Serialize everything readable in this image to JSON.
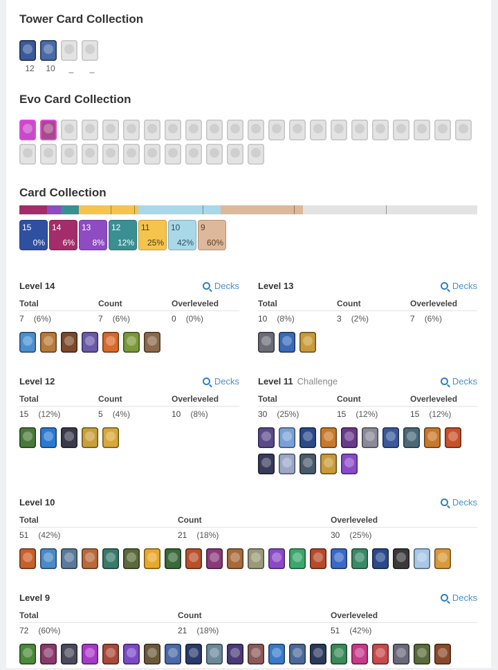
{
  "sections": {
    "tower_title": "Tower Card Collection",
    "evo_title": "Evo Card Collection",
    "card_title": "Card Collection"
  },
  "tower": {
    "labels": [
      "12",
      "10",
      "_",
      "_"
    ]
  },
  "collection": {
    "chips": [
      {
        "level": "15",
        "pct": "0%",
        "color": "#2f4fa0",
        "text": "#ffffff"
      },
      {
        "level": "14",
        "pct": "6%",
        "color": "#a32d6a",
        "text": "#ffffff"
      },
      {
        "level": "13",
        "pct": "8%",
        "color": "#8e4bc2",
        "text": "#ffffff"
      },
      {
        "level": "12",
        "pct": "12%",
        "color": "#3a8f93",
        "text": "#ffffff"
      },
      {
        "level": "11",
        "pct": "25%",
        "color": "#f5c44d",
        "text": "#4a3a10"
      },
      {
        "level": "10",
        "pct": "42%",
        "color": "#a9d8e8",
        "text": "#2e4f5e"
      },
      {
        "level": "9",
        "pct": "60%",
        "color": "#deb89a",
        "text": "#5a3f2a"
      }
    ],
    "bar_segments": [
      {
        "level": "14",
        "fraction": 0.06,
        "color": "#a32d6a"
      },
      {
        "level": "13",
        "fraction": 0.03,
        "color": "#8e4bc2"
      },
      {
        "level": "12",
        "fraction": 0.04,
        "color": "#3a8f93"
      },
      {
        "level": "11",
        "fraction": 0.13,
        "color": "#f5c44d"
      },
      {
        "level": "10",
        "fraction": 0.18,
        "color": "#a9d8e8"
      },
      {
        "level": "9",
        "fraction": 0.18,
        "color": "#deb89a"
      }
    ]
  },
  "levels": {
    "l14": {
      "title": "Level 14",
      "decks": "Decks",
      "total_h": "Total",
      "count_h": "Count",
      "over_h": "Overleveled",
      "total": "7",
      "total_pct": "(6%)",
      "count": "7",
      "count_pct": "(6%)",
      "over": "0",
      "over_pct": "(0%)",
      "cards": [
        "#4c8fd0",
        "#b87a3a",
        "#7d4a2c",
        "#6a5aa8",
        "#d86a2a",
        "#7a9a3a",
        "#8a6a4a"
      ]
    },
    "l13": {
      "title": "Level 13",
      "decks": "Decks",
      "total_h": "Total",
      "count_h": "Count",
      "over_h": "Overleveled",
      "total": "10",
      "total_pct": "(8%)",
      "count": "3",
      "count_pct": "(2%)",
      "over": "7",
      "over_pct": "(6%)",
      "cards": [
        "#6c6c78",
        "#3a6ab8",
        "#c89a3a"
      ]
    },
    "l12": {
      "title": "Level 12",
      "decks": "Decks",
      "total_h": "Total",
      "count_h": "Count",
      "over_h": "Overleveled",
      "total": "15",
      "total_pct": "(12%)",
      "count": "5",
      "count_pct": "(4%)",
      "over": "10",
      "over_pct": "(8%)",
      "cards": [
        "#4a7a3a",
        "#2a7ad0",
        "#3a3a4a",
        "#c8a03a",
        "#d8a83a"
      ]
    },
    "l11": {
      "title": "Level 11",
      "sub": "Challenge",
      "decks": "Decks",
      "total_h": "Total",
      "count_h": "Count",
      "over_h": "Overleveled",
      "total": "30",
      "total_pct": "(25%)",
      "count": "15",
      "count_pct": "(12%)",
      "over": "15",
      "over_pct": "(12%)",
      "cards": [
        "#5a4a8a",
        "#7aa0d8",
        "#2a4a8a",
        "#c87a2a",
        "#6a3a8a",
        "#8a8a9a",
        "#3a5a9a",
        "#4a6a7a",
        "#c8782a",
        "#c8502a",
        "#3a3a5a",
        "#9aa8c8",
        "#4a5a6a",
        "#c89a3a",
        "#8a4ac8"
      ]
    },
    "l10": {
      "title": "Level 10",
      "decks": "Decks",
      "total_h": "Total",
      "count_h": "Count",
      "over_h": "Overleveled",
      "total": "51",
      "total_pct": "(42%)",
      "count": "21",
      "count_pct": "(18%)",
      "over": "30",
      "over_pct": "(25%)",
      "cards": [
        "#c8602a",
        "#4a8ac8",
        "#5a7a9a",
        "#b86a3a",
        "#3a7a6a",
        "#5a6a3a",
        "#e8a82a",
        "#3a6a3a",
        "#b8502a",
        "#8a3a7a",
        "#a86a3a",
        "#9a9a7a",
        "#8a4ac8",
        "#3aa86a",
        "#b84a2a",
        "#3a6ac8",
        "#3a8a6a",
        "#2a4a8a",
        "#3a3a3a",
        "#a8c8e8",
        "#d89a3a"
      ]
    },
    "l9": {
      "title": "Level 9",
      "decks": "Decks",
      "total_h": "Total",
      "count_h": "Count",
      "over_h": "Overleveled",
      "total": "72",
      "total_pct": "(60%)",
      "count": "21",
      "count_pct": "(18%)",
      "over": "51",
      "over_pct": "(42%)",
      "cards": [
        "#4a8a3a",
        "#8a3a6a",
        "#4a4a5a",
        "#a83ac8",
        "#a84a3a",
        "#7a4ac8",
        "#6a5a3a",
        "#4a6aa8",
        "#2a3a6a",
        "#6a8a9a",
        "#4a3a7a",
        "#8a5a5a",
        "#3a7ac8",
        "#4a6a9a",
        "#2a3a5a",
        "#3a8a5a",
        "#c83a8a",
        "#c84a4a",
        "#6a6a7a",
        "#5a6a3a",
        "#8a4a2a"
      ]
    }
  }
}
